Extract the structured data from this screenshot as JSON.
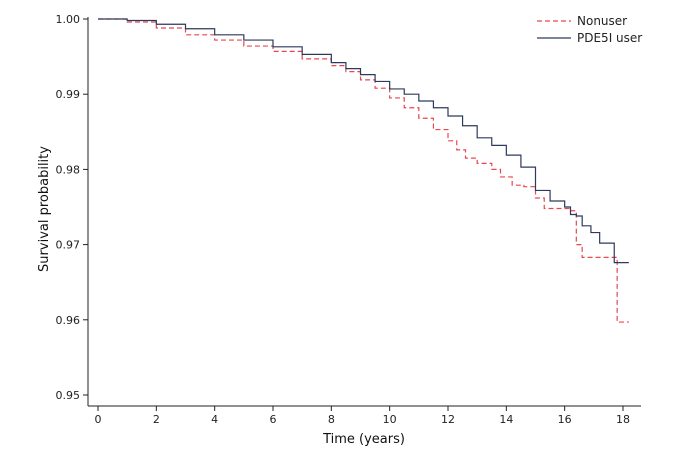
{
  "chart_data": {
    "type": "line",
    "subtype": "step",
    "title": "",
    "xlabel": "Time (years)",
    "ylabel": "Survival probability",
    "xlim": [
      0,
      18.3
    ],
    "ylim": [
      0.95,
      1.0
    ],
    "xticks": [
      0,
      2,
      4,
      6,
      8,
      10,
      12,
      14,
      16,
      18
    ],
    "yticks": [
      0.95,
      0.96,
      0.97,
      0.98,
      0.99,
      1.0
    ],
    "ytick_labels": [
      "0.95",
      "0.96",
      "0.97",
      "0.98",
      "0.99",
      "1.00"
    ],
    "grid": false,
    "legend_position": "top-right",
    "series": [
      {
        "name": "Nonuser",
        "color": "#e8474f",
        "style": "dashed",
        "x": [
          0,
          1,
          2,
          3,
          4,
          5,
          6,
          7,
          8,
          8.5,
          9,
          9.5,
          10,
          10.5,
          11,
          11.5,
          12,
          12.3,
          12.6,
          13,
          13.5,
          13.8,
          14.2,
          14.6,
          15,
          15.3,
          15.7,
          16.2,
          16.4,
          16.6,
          17,
          17.5,
          17.8,
          18.2
        ],
        "y": [
          1.0,
          0.9996,
          0.9988,
          0.9979,
          0.9972,
          0.9964,
          0.9957,
          0.9947,
          0.9938,
          0.993,
          0.9919,
          0.9908,
          0.9895,
          0.9882,
          0.9868,
          0.9853,
          0.9838,
          0.9826,
          0.9815,
          0.9808,
          0.98,
          0.979,
          0.9779,
          0.9777,
          0.9762,
          0.9748,
          0.9748,
          0.9745,
          0.97,
          0.9683,
          0.9683,
          0.9683,
          0.9597,
          0.9597
        ]
      },
      {
        "name": "PDE5I user",
        "color": "#2d3a5c",
        "style": "solid",
        "x": [
          0,
          1,
          2,
          3,
          4,
          5,
          6,
          7,
          8,
          8.5,
          9,
          9.5,
          10,
          10.5,
          11,
          11.5,
          12,
          12.5,
          13,
          13.5,
          14,
          14.5,
          15,
          15.5,
          16,
          16.2,
          16.4,
          16.6,
          16.9,
          17.2,
          17.5,
          17.7,
          18.2
        ],
        "y": [
          1.0,
          0.9998,
          0.9993,
          0.9987,
          0.9979,
          0.9972,
          0.9963,
          0.9953,
          0.9942,
          0.9934,
          0.9926,
          0.9917,
          0.9907,
          0.99,
          0.9891,
          0.9882,
          0.9871,
          0.9858,
          0.9842,
          0.9832,
          0.9819,
          0.9803,
          0.9772,
          0.9758,
          0.975,
          0.974,
          0.9738,
          0.9725,
          0.9716,
          0.9702,
          0.9702,
          0.9676,
          0.9676
        ]
      }
    ]
  }
}
